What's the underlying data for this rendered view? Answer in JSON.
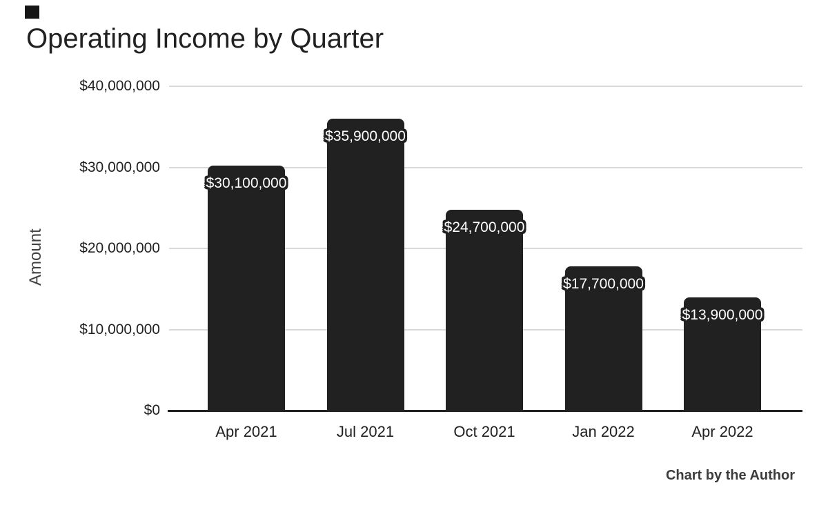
{
  "chart_data": {
    "type": "bar",
    "title": "Operating Income by Quarter",
    "categories": [
      "Apr 2021",
      "Jul 2021",
      "Oct 2021",
      "Jan 2022",
      "Apr 2022"
    ],
    "values": [
      30100000,
      35900000,
      24700000,
      17700000,
      13900000
    ],
    "data_labels": [
      "$30,100,000",
      "$35,900,000",
      "$24,700,000",
      "$17,700,000",
      "$13,900,000"
    ],
    "xlabel": "",
    "ylabel": "Amount",
    "ylim": [
      0,
      40000000
    ],
    "ytick_labels": [
      "$0",
      "$10,000,000",
      "$20,000,000",
      "$30,000,000",
      "$40,000,000"
    ],
    "grid": true,
    "legend": false,
    "footer": "Chart by the Author",
    "bar_color": "#212121",
    "gridline_color": "#d9d9d9",
    "axis_line_color": "#212121",
    "label_text_color": "#ffffff",
    "label_outline_color": "#212121"
  }
}
